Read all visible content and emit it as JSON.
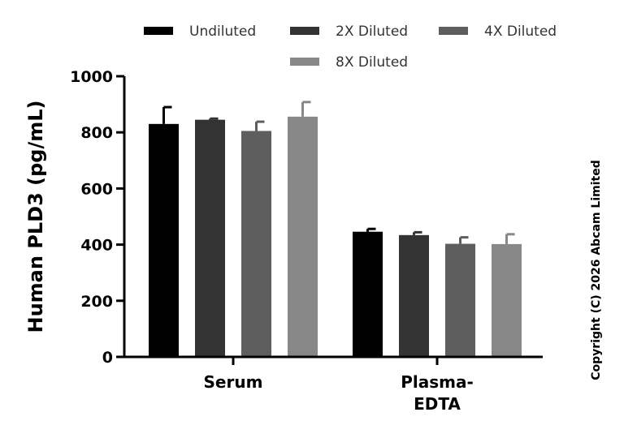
{
  "chart_data": {
    "type": "bar",
    "categories": [
      "Serum",
      "Plasma-\nEDTA"
    ],
    "series": [
      {
        "name": "Undiluted",
        "color": "#000000",
        "values": [
          830,
          446
        ],
        "errors": [
          60,
          10
        ]
      },
      {
        "name": "2X Diluted",
        "color": "#333333",
        "values": [
          845,
          434
        ],
        "errors": [
          4,
          10
        ]
      },
      {
        "name": "4X Diluted",
        "color": "#5e5e5e",
        "values": [
          805,
          403
        ],
        "errors": [
          33,
          23
        ]
      },
      {
        "name": "8X Diluted",
        "color": "#878787",
        "values": [
          856,
          402
        ],
        "errors": [
          52,
          35
        ]
      }
    ],
    "ylabel": "Human PLD3 (pg/mL)",
    "xlabel": "",
    "ylim": [
      0,
      1000
    ],
    "yticks": [
      0,
      200,
      400,
      600,
      800,
      1000
    ],
    "legend_position": "top",
    "grid": false
  },
  "copyright": "Copyright (C) 2026 Abcam Limited"
}
